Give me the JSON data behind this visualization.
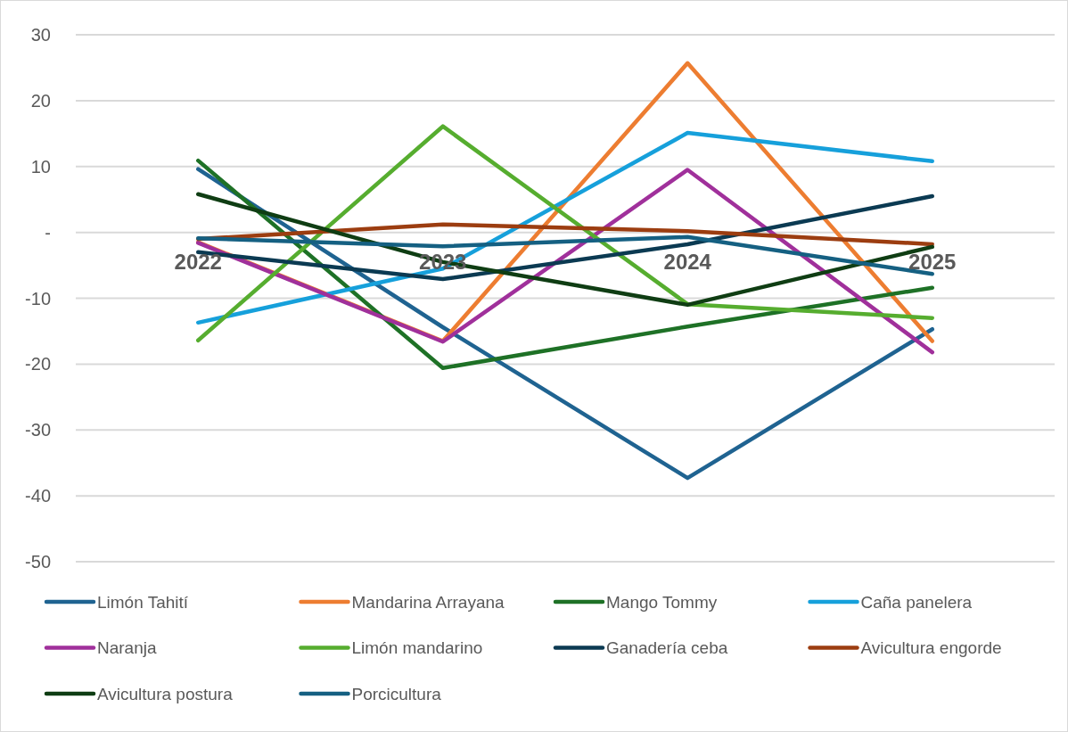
{
  "chart_data": {
    "type": "line",
    "categories": [
      "2022",
      "2023",
      "2024",
      "2025"
    ],
    "ylim": [
      -50,
      30
    ],
    "yticks": [
      -50,
      -40,
      -30,
      -20,
      -10,
      {
        "value": 0,
        "label": "-"
      },
      10,
      20,
      30
    ],
    "grid": "y",
    "legend": "bottom",
    "marker": "none",
    "line_style": "solid",
    "series": [
      {
        "name": "Limón Tahití",
        "color": "#1f6391",
        "values": [
          9.6,
          -14.4,
          -37.3,
          -14.7
        ]
      },
      {
        "name": "Mandarina Arrayana",
        "color": "#ed7d31",
        "values": [
          -1.5,
          -16.5,
          25.7,
          -16.5
        ]
      },
      {
        "name": "Mango Tommy",
        "color": "#1e7126",
        "values": [
          10.9,
          -20.6,
          -14.3,
          -8.4
        ]
      },
      {
        "name": "Caña panelera",
        "color": "#16a0db",
        "values": [
          -13.7,
          -5.5,
          15.1,
          10.8
        ]
      },
      {
        "name": "Naranja",
        "color": "#a0309b",
        "values": [
          -1.6,
          -16.6,
          9.5,
          -18.2
        ]
      },
      {
        "name": "Limón mandarino",
        "color": "#56ad2f",
        "values": [
          -16.4,
          16.1,
          -10.9,
          -13.0
        ]
      },
      {
        "name": "Ganadería ceba",
        "color": "#0b3a52",
        "values": [
          -3.0,
          -7.1,
          -1.8,
          5.5
        ]
      },
      {
        "name": "Avicultura engorde",
        "color": "#9c3d10",
        "values": [
          -1.0,
          1.2,
          0.2,
          -1.8
        ]
      },
      {
        "name": "Avicultura postura",
        "color": "#0f3d13",
        "values": [
          5.8,
          -4.5,
          -11.0,
          -2.2
        ]
      },
      {
        "name": "Porcicultura",
        "color": "#156082",
        "values": [
          -0.9,
          -2.1,
          -0.7,
          -6.3
        ]
      }
    ]
  }
}
